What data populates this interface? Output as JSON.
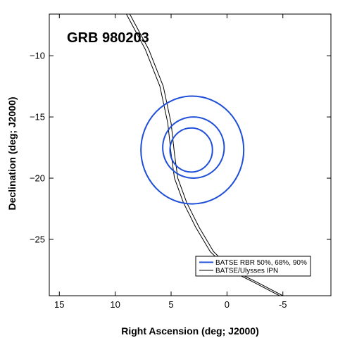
{
  "chart_data": {
    "type": "line",
    "title": "GRB 980203",
    "xlabel": "Right Ascension (deg; J2000)",
    "ylabel": "Declination (deg; J2000)",
    "xlim": [
      15.9,
      -9.3
    ],
    "ylim": [
      -29.6,
      -6.6
    ],
    "xticks": [
      15,
      10,
      5,
      0,
      -5
    ],
    "xtick_labels": [
      "15",
      "10",
      "5",
      "0",
      "-5"
    ],
    "yticks": [
      -10,
      -15,
      -20,
      -25
    ],
    "ytick_labels": [
      "−10",
      "−15",
      "−20",
      "−25"
    ],
    "grid": false,
    "legend_position": "bottom-right",
    "colors": {
      "batse": "#1f4fd8",
      "ipn": "#000000"
    },
    "series": [
      {
        "name": "BATSE RBR 50%, 68%, 90%",
        "kind": "contours",
        "contours": [
          {
            "level": "50%",
            "center": [
              3.2,
              -17.7
            ],
            "rx": 1.9,
            "ry": 1.8
          },
          {
            "level": "68%",
            "center": [
              3.0,
              -17.5
            ],
            "rx": 2.75,
            "ry": 2.5
          },
          {
            "level": "90%",
            "center": [
              3.1,
              -17.7
            ],
            "rx": 4.6,
            "ry": 4.4
          }
        ]
      },
      {
        "name": "BATSE/Ulysses IPN",
        "kind": "annulus",
        "outer": [
          [
            9.0,
            -6.6
          ],
          [
            7.3,
            -9.5
          ],
          [
            6.0,
            -12.5
          ],
          [
            5.3,
            -15.5
          ],
          [
            5.0,
            -18.0
          ],
          [
            4.7,
            -20.0
          ],
          [
            3.9,
            -22.0
          ],
          [
            2.8,
            -24.0
          ],
          [
            1.5,
            -26.0
          ],
          [
            -0.2,
            -27.5
          ],
          [
            -2.4,
            -28.5
          ],
          [
            -4.7,
            -29.6
          ]
        ],
        "inner": [
          [
            8.7,
            -6.6
          ],
          [
            7.0,
            -9.5
          ],
          [
            5.7,
            -12.5
          ],
          [
            5.0,
            -15.5
          ],
          [
            4.7,
            -18.0
          ],
          [
            4.4,
            -20.0
          ],
          [
            3.6,
            -22.0
          ],
          [
            2.5,
            -24.0
          ],
          [
            1.2,
            -26.0
          ],
          [
            -0.5,
            -27.5
          ],
          [
            -2.7,
            -28.5
          ],
          [
            -5.0,
            -29.6
          ]
        ]
      }
    ]
  }
}
